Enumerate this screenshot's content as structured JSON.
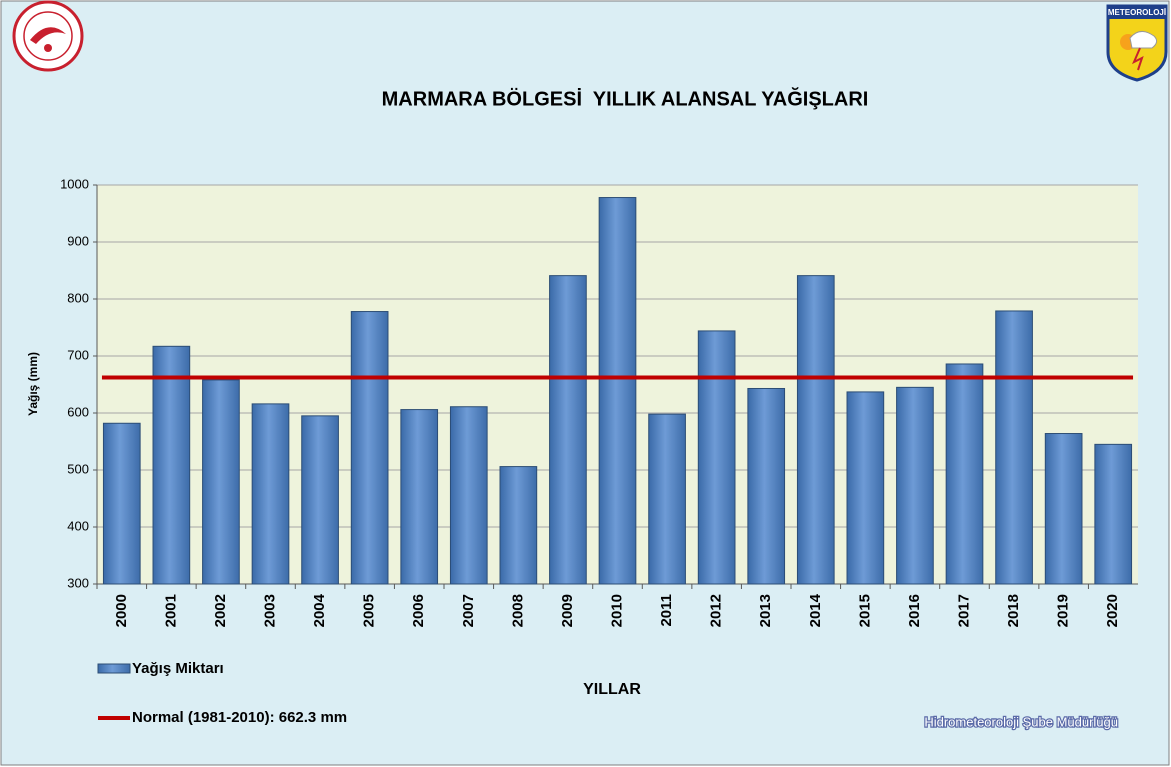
{
  "chart_data": {
    "type": "bar",
    "title": "MARMARA BÖLGESİ  YILLIK ALANSAL YAĞIŞLARI",
    "y_label": "Yağış (mm)",
    "x_label": "YILLAR",
    "categories": [
      "2000",
      "2001",
      "2002",
      "2003",
      "2004",
      "2005",
      "2006",
      "2007",
      "2008",
      "2009",
      "2010",
      "2011",
      "2012",
      "2013",
      "2014",
      "2015",
      "2016",
      "2017",
      "2018",
      "2019",
      "2020"
    ],
    "series": [
      {
        "name": "Yağış Miktarı",
        "color": "#4f81bd",
        "values": [
          582,
          717,
          658,
          616,
          595,
          778,
          606,
          611,
          506,
          841,
          978,
          598,
          744,
          643,
          841,
          637,
          645,
          686,
          779,
          564,
          545
        ]
      }
    ],
    "reference_line": {
      "name": "Normal (1981-2010): 662.3 mm",
      "value": 662.3,
      "color": "#c00000"
    },
    "ylim": [
      300,
      1000
    ],
    "yticks": [
      300,
      400,
      500,
      600,
      700,
      800,
      900,
      1000
    ],
    "grid": true
  },
  "logo_text": "METEOROLOJİ",
  "footer": "Hidrometeoroloji Şube Müdürlüğü"
}
